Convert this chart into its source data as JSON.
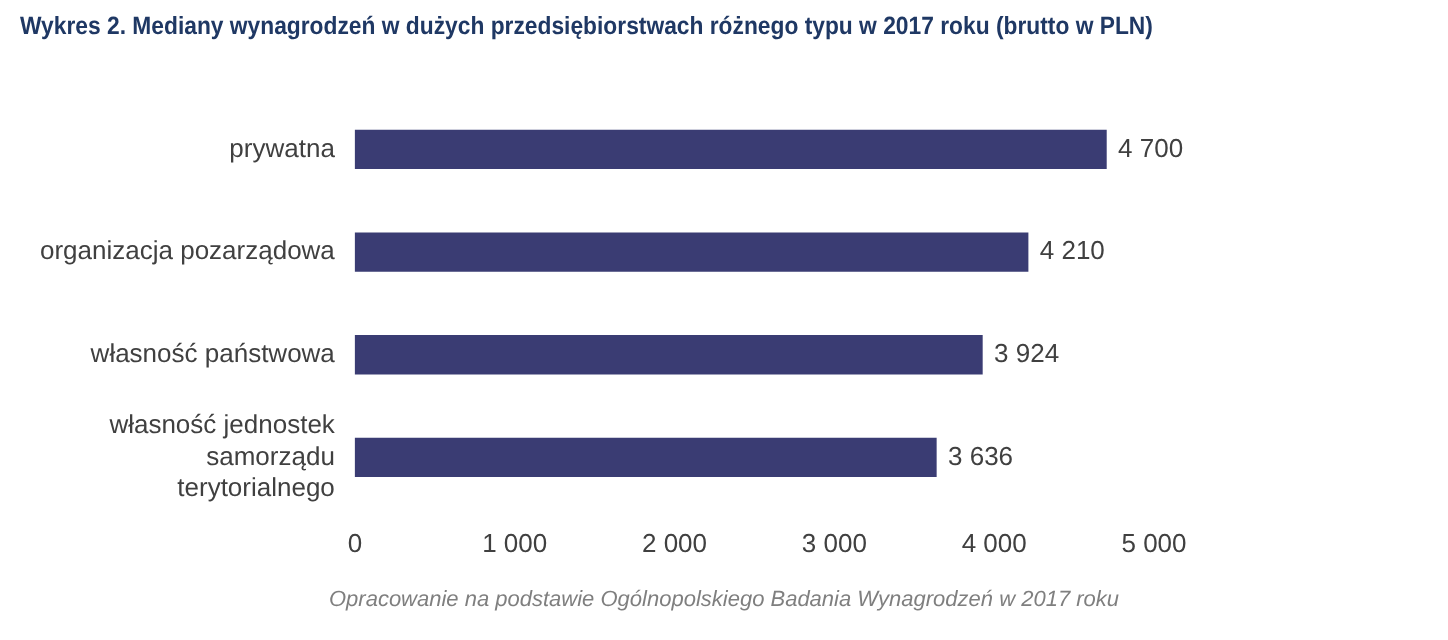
{
  "chart_data": {
    "type": "bar",
    "orientation": "horizontal",
    "title": "Wykres 2. Mediany wynagrodzeń w dużych przedsiębiorstwach różnego typu w 2017 roku (brutto w PLN)",
    "categories": [
      "prywatna",
      "organizacja pozarządowa",
      "własność państwowa",
      "własność jednostek samorządu terytorialnego"
    ],
    "values": [
      4700,
      4210,
      3924,
      3636
    ],
    "value_labels": [
      "4 700",
      "4 210",
      "3 924",
      "3 636"
    ],
    "color": "#3a3c73",
    "xlim": [
      0,
      5000
    ],
    "xticks": [
      0,
      {
        "value": 1000,
        "label": "1 000"
      },
      {
        "value": 2000,
        "label": "2 000"
      },
      {
        "value": 3000,
        "label": "3 000"
      },
      {
        "value": 4000,
        "label": "4 000"
      },
      {
        "value": 5000,
        "label": "5 000"
      }
    ],
    "grid": false,
    "legend": false,
    "annotations": [
      "Opracowanie na podstawie Ogólnopolskiego Badania Wynagrodzeń w 2017 roku"
    ]
  }
}
